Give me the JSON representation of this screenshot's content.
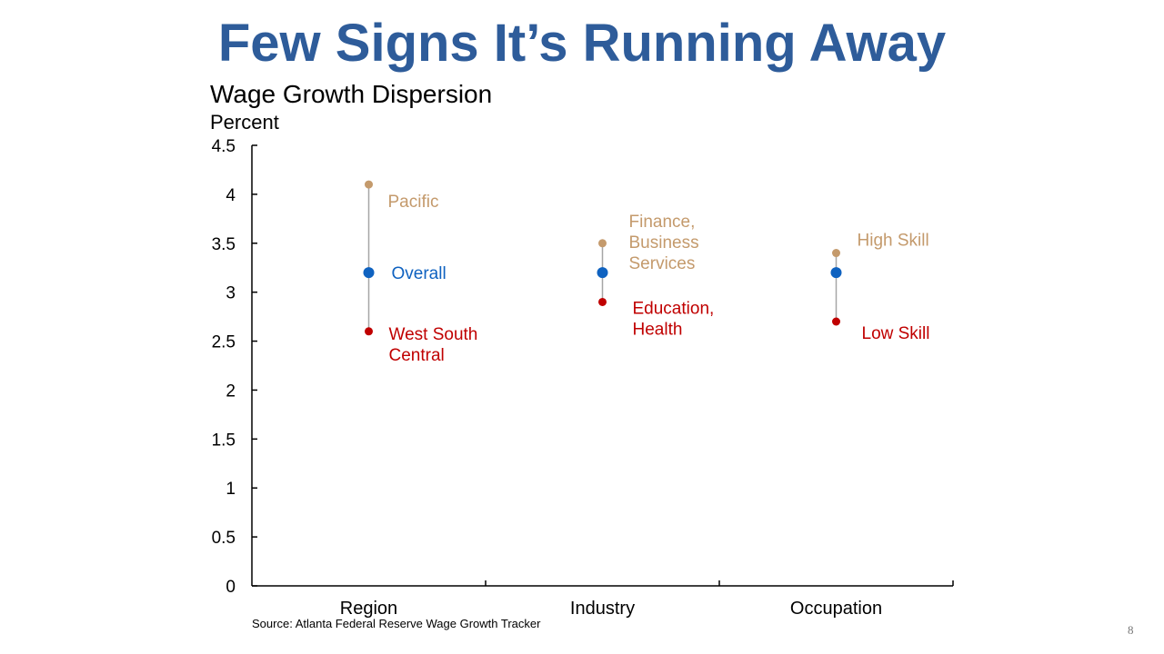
{
  "slide": {
    "title": "Few Signs It’s Running Away",
    "page_number": "8",
    "source": "Source: Atlanta Federal Reserve Wage Growth Tracker"
  },
  "colors": {
    "title": "#2E5C9A",
    "high": "#C49A6C",
    "overall": "#0F62C0",
    "low": "#C00000",
    "range_line": "#A6A6A6",
    "axis": "#000000"
  },
  "chart_data": {
    "type": "scatter",
    "title": "Wage Growth Dispersion",
    "ylabel": "Percent",
    "xlabel": "",
    "ylim": [
      0,
      4.5
    ],
    "yticks": [
      "0",
      "0.5",
      "1",
      "1.5",
      "2",
      "2.5",
      "3",
      "3.5",
      "4",
      "4.5"
    ],
    "categories": [
      "Region",
      "Industry",
      "Occupation"
    ],
    "grid": false,
    "legend": "none",
    "series": [
      {
        "role": "high",
        "values": [
          4.1,
          3.5,
          3.4
        ],
        "labels": [
          "Pacific",
          "Finance, Business Services",
          "High Skill"
        ]
      },
      {
        "role": "overall",
        "values": [
          3.2,
          3.2,
          3.2
        ],
        "labels": [
          "Overall",
          "",
          ""
        ]
      },
      {
        "role": "low",
        "values": [
          2.6,
          2.9,
          2.7
        ],
        "labels": [
          "West South Central",
          "Education, Health",
          "Low Skill"
        ]
      }
    ]
  }
}
